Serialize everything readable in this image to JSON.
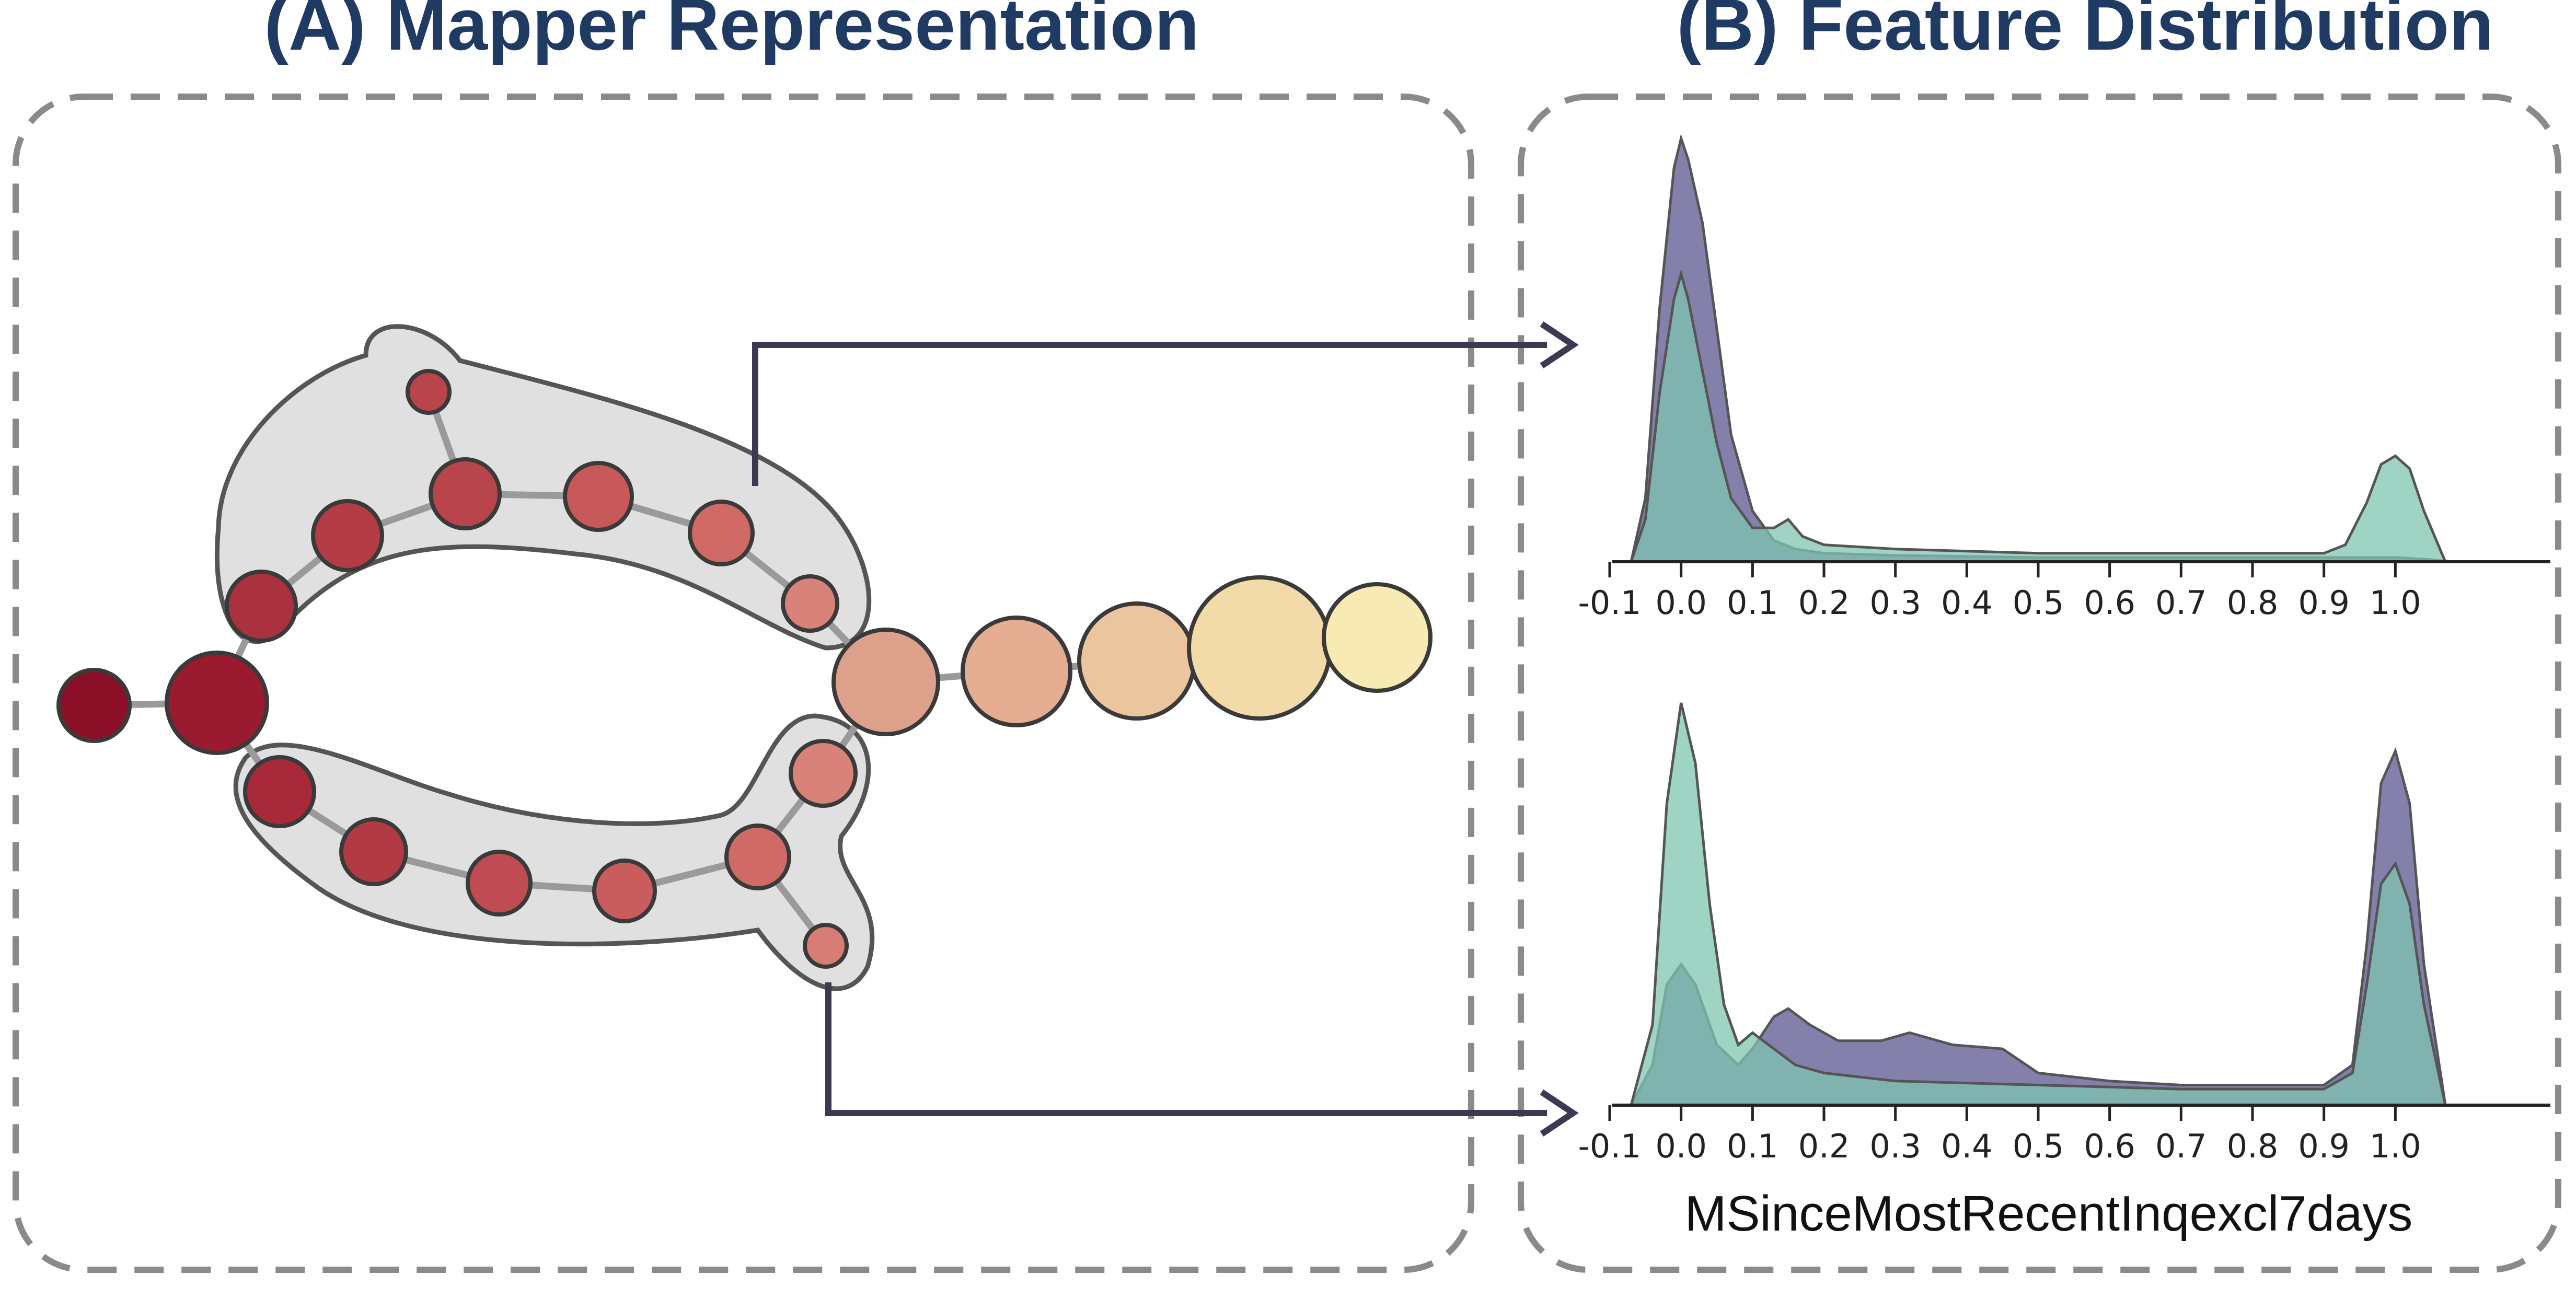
{
  "panels": {
    "a_title": "(A) Mapper Representation",
    "b_title": "(B) Feature Distribution"
  },
  "feature_name": "MSinceMostRecentInqexcl7days",
  "colors": {
    "title": "#1f3a63",
    "dashed_border": "#8a8a8a",
    "arrow": "#3a3a50",
    "group_fill": "#e0e0e0",
    "edge": "#9a9a9a",
    "purple_density": "#6e6a9e",
    "teal_density": "#7fc4b0",
    "node_scale": [
      "#8b0f26",
      "#b9414a",
      "#d88078",
      "#e9b79a",
      "#f5e2a8"
    ]
  },
  "mapper_graph": {
    "node_count": 22,
    "highlighted_groups": 2
  },
  "chart_data": [
    {
      "type": "area",
      "x_ticks": [
        "-0.1",
        "0.0",
        "0.1",
        "0.2",
        "0.3",
        "0.4",
        "0.5",
        "0.6",
        "0.7",
        "0.8",
        "0.9",
        "1.0"
      ],
      "xlim": [
        -0.1,
        1.1
      ],
      "series": [
        {
          "color": "#6e6a9e",
          "x": [
            -0.07,
            -0.05,
            -0.03,
            -0.01,
            0.0,
            0.01,
            0.03,
            0.05,
            0.07,
            0.1,
            0.13,
            0.16,
            0.2,
            0.3,
            0.5,
            0.7,
            0.9,
            0.95,
            1.0,
            1.05,
            1.08
          ],
          "y": [
            0,
            0.15,
            0.6,
            0.93,
            1.0,
            0.95,
            0.8,
            0.55,
            0.3,
            0.12,
            0.05,
            0.03,
            0.02,
            0.015,
            0.01,
            0.01,
            0.01,
            0.01,
            0.01,
            0.005,
            0
          ]
        },
        {
          "color": "#7fc4b0",
          "x": [
            -0.07,
            -0.05,
            -0.03,
            -0.01,
            0.0,
            0.01,
            0.03,
            0.05,
            0.07,
            0.1,
            0.13,
            0.15,
            0.17,
            0.2,
            0.3,
            0.5,
            0.7,
            0.9,
            0.93,
            0.96,
            0.98,
            1.0,
            1.02,
            1.04,
            1.07
          ],
          "y": [
            0,
            0.1,
            0.4,
            0.62,
            0.68,
            0.62,
            0.45,
            0.28,
            0.15,
            0.08,
            0.08,
            0.1,
            0.06,
            0.04,
            0.03,
            0.02,
            0.02,
            0.02,
            0.04,
            0.14,
            0.23,
            0.25,
            0.22,
            0.12,
            0
          ]
        }
      ]
    },
    {
      "type": "area",
      "x_ticks": [
        "-0.1",
        "0.0",
        "0.1",
        "0.2",
        "0.3",
        "0.4",
        "0.5",
        "0.6",
        "0.7",
        "0.8",
        "0.9",
        "1.0"
      ],
      "xlim": [
        -0.1,
        1.1
      ],
      "series": [
        {
          "color": "#6e6a9e",
          "x": [
            -0.07,
            -0.04,
            -0.02,
            0.0,
            0.02,
            0.05,
            0.08,
            0.1,
            0.13,
            0.15,
            0.18,
            0.22,
            0.28,
            0.32,
            0.38,
            0.45,
            0.5,
            0.6,
            0.7,
            0.8,
            0.9,
            0.94,
            0.96,
            0.98,
            1.0,
            1.02,
            1.04,
            1.07
          ],
          "y": [
            0,
            0.1,
            0.3,
            0.35,
            0.3,
            0.15,
            0.1,
            0.14,
            0.22,
            0.24,
            0.2,
            0.16,
            0.16,
            0.18,
            0.15,
            0.14,
            0.08,
            0.06,
            0.05,
            0.05,
            0.05,
            0.1,
            0.4,
            0.8,
            0.88,
            0.75,
            0.35,
            0
          ]
        },
        {
          "color": "#7fc4b0",
          "x": [
            -0.07,
            -0.04,
            -0.02,
            0.0,
            0.02,
            0.04,
            0.06,
            0.08,
            0.1,
            0.13,
            0.16,
            0.2,
            0.3,
            0.5,
            0.7,
            0.9,
            0.94,
            0.96,
            0.98,
            1.0,
            1.02,
            1.04,
            1.07
          ],
          "y": [
            0,
            0.2,
            0.75,
            1.0,
            0.85,
            0.5,
            0.25,
            0.15,
            0.18,
            0.14,
            0.1,
            0.08,
            0.06,
            0.05,
            0.04,
            0.04,
            0.08,
            0.3,
            0.55,
            0.6,
            0.5,
            0.25,
            0
          ]
        }
      ]
    }
  ]
}
